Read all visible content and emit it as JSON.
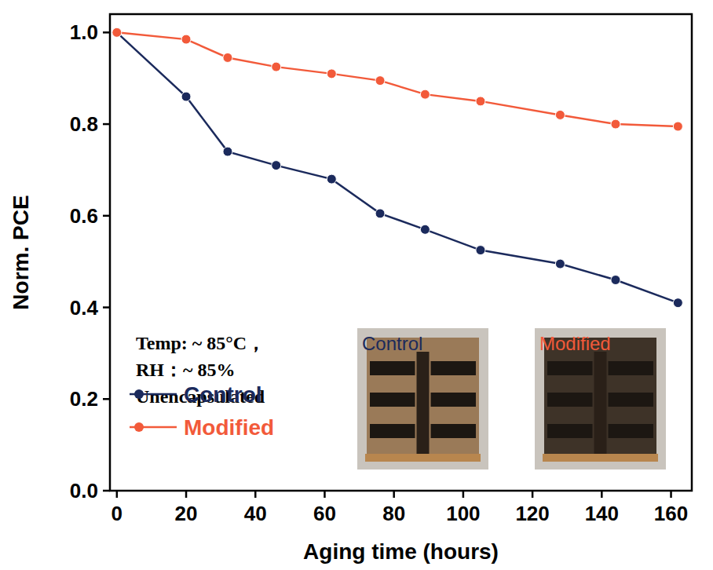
{
  "chart_data": {
    "type": "line",
    "x_label": "Aging time (hours)",
    "y_label": "Norm. PCE",
    "x": [
      0,
      20,
      32,
      46,
      62,
      76,
      89,
      105,
      128,
      144,
      162
    ],
    "series": [
      {
        "name": "Control",
        "color": "#1b2a5c",
        "marker": "circle",
        "values": [
          1.0,
          0.86,
          0.74,
          0.71,
          0.68,
          0.605,
          0.57,
          0.525,
          0.495,
          0.46,
          0.41
        ]
      },
      {
        "name": "Modified",
        "color": "#f25a3a",
        "marker": "circle",
        "values": [
          1.0,
          0.985,
          0.945,
          0.925,
          0.91,
          0.895,
          0.865,
          0.85,
          0.82,
          0.8,
          0.795
        ]
      }
    ],
    "xlim": [
      -2,
      166
    ],
    "xticks": [
      0,
      20,
      40,
      60,
      80,
      100,
      120,
      140,
      160
    ],
    "ylim": [
      0,
      1.04
    ],
    "yticks": [
      {
        "value": 0,
        "label": "0.0"
      },
      {
        "value": 0.2,
        "label": "0.2"
      },
      {
        "value": 0.4,
        "label": "0.4"
      },
      {
        "value": 0.6,
        "label": "0.6"
      },
      {
        "value": 0.8,
        "label": "0.8"
      },
      {
        "value": 1.0,
        "label": "1.0"
      }
    ],
    "annotations": [
      "Temp: ~ 85°C，",
      "RH：~ 85%",
      "Unencapsulated"
    ],
    "inset_labels": [
      "Control",
      "Modified"
    ],
    "legend": "lower left",
    "grid": false
  }
}
